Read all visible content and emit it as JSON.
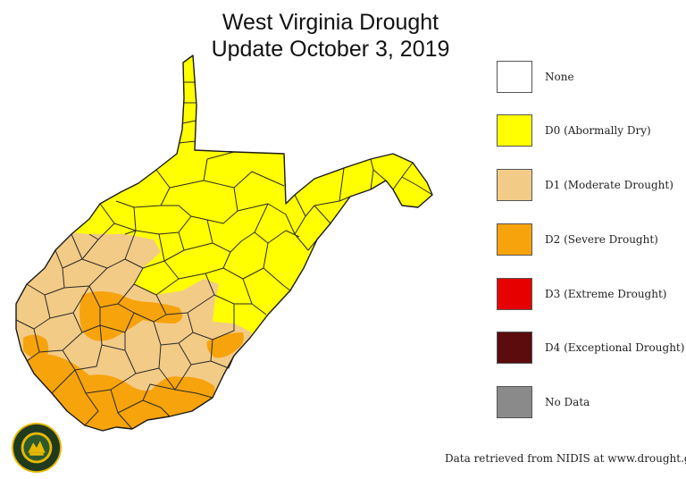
{
  "title_line1": "West Virginia Drought",
  "title_line2": "Update October 3, 2019",
  "legend": [
    {
      "label": "None",
      "color": "#ffffff"
    },
    {
      "label": "D0 (Abormally Dry)",
      "color": "#ffff00"
    },
    {
      "label": "D1 (Moderate Drought)",
      "color": "#f2cb86"
    },
    {
      "label": "D2 (Severe Drought)",
      "color": "#f7a30c"
    },
    {
      "label": "D3 (Extreme Drought)",
      "color": "#e60000"
    },
    {
      "label": "D4 (Exceptional Drought)",
      "color": "#5c0c0c"
    },
    {
      "label": "No Data",
      "color": "#8a8a8a"
    }
  ],
  "source": "Data retrieved from NIDIS at www.drought.gov",
  "seal": {
    "icon": "department-of-agriculture-seal-icon",
    "text": "DEPARTMENT OF AGRICULTURE"
  }
}
